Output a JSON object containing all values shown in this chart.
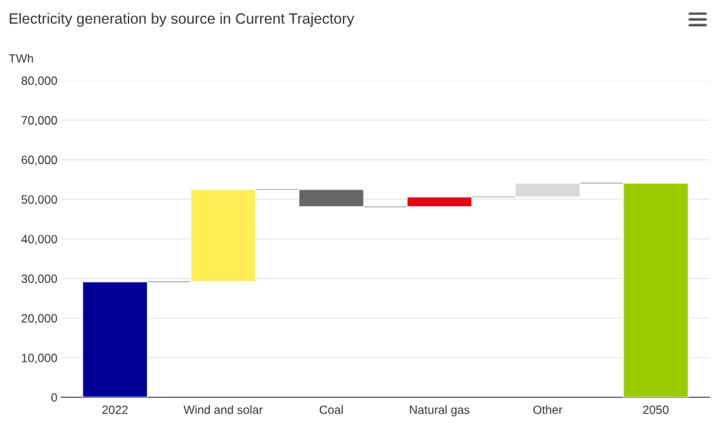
{
  "chart_data": {
    "type": "bar",
    "title": "Electricity generation by source in Current Trajectory",
    "ylabel": "TWh",
    "categories": [
      "2022",
      "Wind and solar",
      "Coal",
      "Natural gas",
      "Other",
      "2050"
    ],
    "values": [
      29200,
      23300,
      -4400,
      2500,
      3500,
      54100
    ],
    "base": [
      0,
      29200,
      52500,
      48100,
      50600,
      0
    ],
    "colors": [
      "#000099",
      "#ffec55",
      "#666666",
      "#e30613",
      "#d9d9d9",
      "#99cc00"
    ],
    "ylim": [
      0,
      80000
    ],
    "yticks": [
      0,
      {
        "value": 10000,
        "label": "10,000"
      },
      {
        "value": 20000,
        "label": "20,000"
      },
      {
        "value": 30000,
        "label": "30,000"
      },
      {
        "value": 40000,
        "label": "40,000"
      },
      {
        "value": 50000,
        "label": "50,000"
      },
      {
        "value": 60000,
        "label": "60,000"
      },
      {
        "value": 70000,
        "label": "70,000"
      },
      {
        "value": 80000,
        "label": "80,000"
      }
    ],
    "grid": "y",
    "legend": false
  }
}
